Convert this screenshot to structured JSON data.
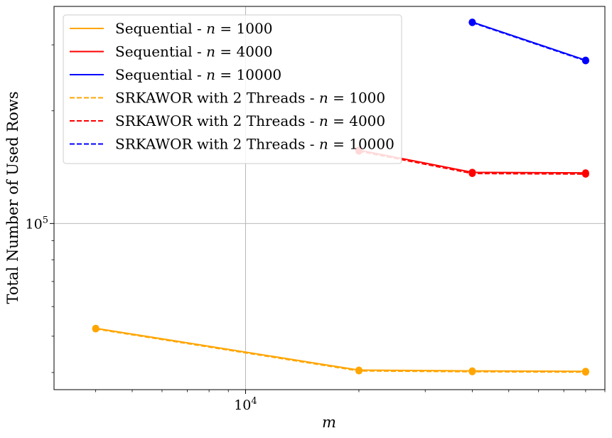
{
  "chart_data": {
    "type": "line",
    "xlabel": "m",
    "ylabel": "Total Number of Used Rows",
    "xscale": "log",
    "yscale": "log",
    "xlim": [
      3100,
      90000
    ],
    "ylim": [
      36000,
      380000
    ],
    "grid": true,
    "legend_position": "top-left",
    "x_ticks": [
      {
        "value": 10000,
        "label": "10^4"
      }
    ],
    "y_ticks": [
      {
        "value": 100000,
        "label": "10^5"
      }
    ],
    "series": [
      {
        "name": "Sequential - n = 1000",
        "color": "#ffa500",
        "dash": "solid",
        "x": [
          4000,
          20000,
          40000,
          80000
        ],
        "y": [
          52500,
          40600,
          40400,
          40300
        ]
      },
      {
        "name": "Sequential - n = 4000",
        "color": "#ff0000",
        "dash": "solid",
        "x": [
          20000,
          40000,
          80000
        ],
        "y": [
          157000,
          137000,
          136500
        ]
      },
      {
        "name": "Sequential - n = 10000",
        "color": "#0000ff",
        "dash": "solid",
        "x": [
          40000,
          80000
        ],
        "y": [
          345000,
          273000
        ]
      },
      {
        "name": "SRKAWOR with 2 Threads - n = 1000",
        "color": "#ffa500",
        "dash": "dashed",
        "x": [
          4000,
          20000,
          40000,
          80000
        ],
        "y": [
          52300,
          40400,
          40200,
          40100
        ]
      },
      {
        "name": "SRKAWOR with 2 Threads - n = 4000",
        "color": "#ff0000",
        "dash": "dashed",
        "x": [
          20000,
          40000,
          80000
        ],
        "y": [
          156000,
          136000,
          135500
        ]
      },
      {
        "name": "SRKAWOR with 2 Threads - n = 10000",
        "color": "#0000ff",
        "dash": "dashed",
        "x": [
          40000,
          80000
        ],
        "y": [
          344000,
          272000
        ]
      }
    ]
  }
}
